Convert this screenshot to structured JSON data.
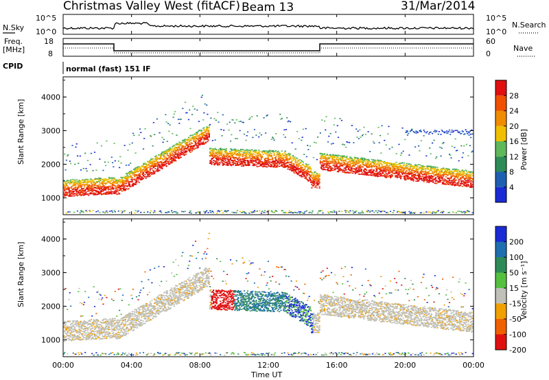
{
  "header": {
    "station": "Christmas Valley West (fitACF)",
    "beam": "Beam 13",
    "date": "31/Mar/2014"
  },
  "noise_panel": {
    "left_label": "N.Sky",
    "right_label": "N.Search",
    "left_ticks": [
      "10^5",
      "10^0"
    ],
    "right_ticks": [
      "10^5",
      "10^0"
    ]
  },
  "freq_panel": {
    "left_label_line1": "Freq.",
    "left_label_line2": "[MHz]",
    "right_label": "Nave",
    "left_ticks": [
      "18",
      "8"
    ],
    "right_ticks": [
      "60",
      "0"
    ]
  },
  "cpid_panel": {
    "label": "CPID",
    "text": "normal (fast) 151 IF"
  },
  "x_axis": {
    "label": "Time UT",
    "ticks": [
      "00:00",
      "04:00",
      "08:00",
      "12:00",
      "16:00",
      "20:00",
      "00:00"
    ]
  },
  "chart_data": [
    {
      "type": "heatmap",
      "title": "",
      "xlabel": "",
      "ylabel": "Slant Range [km]",
      "y_ticks": [
        "1000",
        "2000",
        "3000",
        "4000"
      ],
      "ylim": [
        500,
        4600
      ],
      "xlim_hours": [
        0,
        24
      ],
      "colorbar": {
        "label": "Power [dB]",
        "ticks": [
          "4",
          "8",
          "12",
          "16",
          "20",
          "24",
          "28"
        ],
        "range": [
          0,
          32
        ]
      },
      "colors": [
        "#1a2bd6",
        "#1f5fb0",
        "#2e8b57",
        "#5fb85a",
        "#f0c000",
        "#f08c00",
        "#f05000",
        "#e01010"
      ]
    },
    {
      "type": "heatmap",
      "title": "",
      "xlabel": "Time UT",
      "ylabel": "Slant Range [km]",
      "y_ticks": [
        "1000",
        "2000",
        "3000",
        "4000"
      ],
      "ylim": [
        500,
        4600
      ],
      "xlim_hours": [
        0,
        24
      ],
      "colorbar": {
        "label": "Velocity [m s⁻¹]",
        "ticks": [
          "200",
          "100",
          "50",
          "15",
          "-15",
          "-50",
          "-100",
          "-200"
        ]
      },
      "colors": [
        "#1a2bd6",
        "#1f6fb0",
        "#2e8b57",
        "#55c040",
        "#c0c0b8",
        "#f0a000",
        "#f06000",
        "#e01010"
      ]
    }
  ]
}
